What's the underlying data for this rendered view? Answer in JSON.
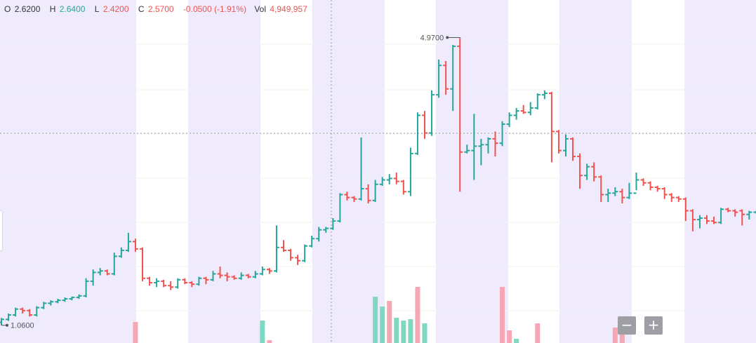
{
  "legend": {
    "o_label": "O",
    "o_value": "2.6200",
    "h_label": "H",
    "h_value": "2.6400",
    "l_label": "L",
    "l_value": "2.4200",
    "c_label": "C",
    "c_value": "2.5700",
    "change": "-0.0500 (-1.91%)",
    "vol_label": "Vol",
    "vol_value": "4,949,957"
  },
  "annotations": {
    "max_label": "4.9700",
    "min_label": "1.0600"
  },
  "zoom": {
    "minus_label": "−",
    "plus_label": "+"
  },
  "colors": {
    "up": "#26a69a",
    "down": "#ef5350",
    "band": "#efebfd",
    "crosshair": "#9598a1"
  },
  "chart_data": {
    "type": "ohlc",
    "ylim": [
      1.0,
      5.3
    ],
    "max_high": 4.97,
    "min_low": 1.06,
    "series": [
      {
        "o": 1.1,
        "h": 1.16,
        "l": 1.06,
        "c": 1.14
      },
      {
        "o": 1.14,
        "h": 1.22,
        "l": 1.12,
        "c": 1.2
      },
      {
        "o": 1.2,
        "h": 1.3,
        "l": 1.18,
        "c": 1.28
      },
      {
        "o": 1.28,
        "h": 1.3,
        "l": 1.22,
        "c": 1.26
      },
      {
        "o": 1.26,
        "h": 1.28,
        "l": 1.18,
        "c": 1.2
      },
      {
        "o": 1.2,
        "h": 1.32,
        "l": 1.18,
        "c": 1.3
      },
      {
        "o": 1.3,
        "h": 1.38,
        "l": 1.28,
        "c": 1.36
      },
      {
        "o": 1.36,
        "h": 1.4,
        "l": 1.33,
        "c": 1.38
      },
      {
        "o": 1.38,
        "h": 1.42,
        "l": 1.36,
        "c": 1.4
      },
      {
        "o": 1.4,
        "h": 1.44,
        "l": 1.38,
        "c": 1.42
      },
      {
        "o": 1.42,
        "h": 1.45,
        "l": 1.4,
        "c": 1.44
      },
      {
        "o": 1.44,
        "h": 1.48,
        "l": 1.42,
        "c": 1.46
      },
      {
        "o": 1.46,
        "h": 1.7,
        "l": 1.44,
        "c": 1.66
      },
      {
        "o": 1.66,
        "h": 1.82,
        "l": 1.6,
        "c": 1.78
      },
      {
        "o": 1.78,
        "h": 1.84,
        "l": 1.74,
        "c": 1.8
      },
      {
        "o": 1.8,
        "h": 1.82,
        "l": 1.74,
        "c": 1.76
      },
      {
        "o": 1.76,
        "h": 2.05,
        "l": 1.74,
        "c": 2.0
      },
      {
        "o": 2.0,
        "h": 2.12,
        "l": 1.98,
        "c": 2.08
      },
      {
        "o": 2.08,
        "h": 2.32,
        "l": 2.06,
        "c": 2.2
      },
      {
        "o": 2.2,
        "h": 2.24,
        "l": 2.06,
        "c": 2.1
      },
      {
        "o": 2.1,
        "h": 2.12,
        "l": 1.66,
        "c": 1.7
      },
      {
        "o": 1.7,
        "h": 1.72,
        "l": 1.6,
        "c": 1.64
      },
      {
        "o": 1.64,
        "h": 1.7,
        "l": 1.58,
        "c": 1.66
      },
      {
        "o": 1.66,
        "h": 1.68,
        "l": 1.58,
        "c": 1.6
      },
      {
        "o": 1.6,
        "h": 1.66,
        "l": 1.54,
        "c": 1.58
      },
      {
        "o": 1.58,
        "h": 1.7,
        "l": 1.56,
        "c": 1.68
      },
      {
        "o": 1.68,
        "h": 1.7,
        "l": 1.62,
        "c": 1.64
      },
      {
        "o": 1.64,
        "h": 1.66,
        "l": 1.58,
        "c": 1.62
      },
      {
        "o": 1.62,
        "h": 1.72,
        "l": 1.6,
        "c": 1.7
      },
      {
        "o": 1.7,
        "h": 1.72,
        "l": 1.62,
        "c": 1.68
      },
      {
        "o": 1.68,
        "h": 1.8,
        "l": 1.66,
        "c": 1.76
      },
      {
        "o": 1.76,
        "h": 1.86,
        "l": 1.7,
        "c": 1.74
      },
      {
        "o": 1.74,
        "h": 1.78,
        "l": 1.66,
        "c": 1.72
      },
      {
        "o": 1.72,
        "h": 1.74,
        "l": 1.68,
        "c": 1.7
      },
      {
        "o": 1.7,
        "h": 1.78,
        "l": 1.68,
        "c": 1.74
      },
      {
        "o": 1.74,
        "h": 1.76,
        "l": 1.7,
        "c": 1.72
      },
      {
        "o": 1.72,
        "h": 1.8,
        "l": 1.7,
        "c": 1.76
      },
      {
        "o": 1.76,
        "h": 1.86,
        "l": 1.74,
        "c": 1.82
      },
      {
        "o": 1.82,
        "h": 1.84,
        "l": 1.76,
        "c": 1.8
      },
      {
        "o": 1.8,
        "h": 2.42,
        "l": 1.78,
        "c": 2.12
      },
      {
        "o": 2.12,
        "h": 2.22,
        "l": 2.06,
        "c": 2.08
      },
      {
        "o": 2.08,
        "h": 2.1,
        "l": 1.94,
        "c": 1.98
      },
      {
        "o": 1.98,
        "h": 2.02,
        "l": 1.88,
        "c": 1.94
      },
      {
        "o": 1.94,
        "h": 2.16,
        "l": 1.92,
        "c": 2.14
      },
      {
        "o": 2.14,
        "h": 2.28,
        "l": 2.12,
        "c": 2.24
      },
      {
        "o": 2.24,
        "h": 2.4,
        "l": 2.2,
        "c": 2.36
      },
      {
        "o": 2.36,
        "h": 2.4,
        "l": 2.32,
        "c": 2.38
      },
      {
        "o": 2.38,
        "h": 2.52,
        "l": 2.36,
        "c": 2.48
      },
      {
        "o": 2.48,
        "h": 2.86,
        "l": 2.46,
        "c": 2.84
      },
      {
        "o": 2.84,
        "h": 2.88,
        "l": 2.76,
        "c": 2.8
      },
      {
        "o": 2.8,
        "h": 2.82,
        "l": 2.74,
        "c": 2.78
      },
      {
        "o": 2.78,
        "h": 3.62,
        "l": 2.76,
        "c": 2.92
      },
      {
        "o": 2.92,
        "h": 2.98,
        "l": 2.72,
        "c": 2.76
      },
      {
        "o": 2.76,
        "h": 3.04,
        "l": 2.74,
        "c": 2.98
      },
      {
        "o": 2.98,
        "h": 3.08,
        "l": 2.96,
        "c": 3.04
      },
      {
        "o": 3.04,
        "h": 3.12,
        "l": 2.98,
        "c": 3.06
      },
      {
        "o": 3.06,
        "h": 3.14,
        "l": 2.98,
        "c": 3.02
      },
      {
        "o": 3.02,
        "h": 3.04,
        "l": 2.84,
        "c": 2.88
      },
      {
        "o": 2.88,
        "h": 3.48,
        "l": 2.82,
        "c": 3.4
      },
      {
        "o": 3.4,
        "h": 3.96,
        "l": 3.38,
        "c": 3.92
      },
      {
        "o": 3.92,
        "h": 3.98,
        "l": 3.6,
        "c": 3.68
      },
      {
        "o": 3.68,
        "h": 4.26,
        "l": 3.64,
        "c": 4.2
      },
      {
        "o": 4.2,
        "h": 4.68,
        "l": 4.16,
        "c": 4.6
      },
      {
        "o": 4.6,
        "h": 4.66,
        "l": 4.2,
        "c": 4.28
      },
      {
        "o": 4.28,
        "h": 4.88,
        "l": 3.98,
        "c": 4.86
      },
      {
        "o": 4.86,
        "h": 4.97,
        "l": 2.88,
        "c": 3.42
      },
      {
        "o": 3.42,
        "h": 3.52,
        "l": 3.4,
        "c": 3.44
      },
      {
        "o": 3.44,
        "h": 3.94,
        "l": 3.04,
        "c": 3.5
      },
      {
        "o": 3.5,
        "h": 3.6,
        "l": 3.24,
        "c": 3.52
      },
      {
        "o": 3.52,
        "h": 3.62,
        "l": 3.4,
        "c": 3.6
      },
      {
        "o": 3.6,
        "h": 3.7,
        "l": 3.36,
        "c": 3.54
      },
      {
        "o": 3.54,
        "h": 3.84,
        "l": 3.5,
        "c": 3.8
      },
      {
        "o": 3.8,
        "h": 3.96,
        "l": 3.76,
        "c": 3.92
      },
      {
        "o": 3.92,
        "h": 4.02,
        "l": 3.86,
        "c": 3.98
      },
      {
        "o": 3.98,
        "h": 4.06,
        "l": 3.94,
        "c": 3.96
      },
      {
        "o": 3.96,
        "h": 4.1,
        "l": 3.92,
        "c": 4.02
      },
      {
        "o": 4.02,
        "h": 4.22,
        "l": 4.0,
        "c": 4.2
      },
      {
        "o": 4.2,
        "h": 4.26,
        "l": 4.14,
        "c": 4.22
      },
      {
        "o": 4.22,
        "h": 4.24,
        "l": 3.28,
        "c": 3.7
      },
      {
        "o": 3.7,
        "h": 3.72,
        "l": 3.4,
        "c": 3.44
      },
      {
        "o": 3.44,
        "h": 3.66,
        "l": 3.36,
        "c": 3.6
      },
      {
        "o": 3.6,
        "h": 3.62,
        "l": 3.3,
        "c": 3.36
      },
      {
        "o": 3.36,
        "h": 3.4,
        "l": 2.92,
        "c": 3.1
      },
      {
        "o": 3.1,
        "h": 3.26,
        "l": 3.04,
        "c": 3.22
      },
      {
        "o": 3.22,
        "h": 3.28,
        "l": 3.02,
        "c": 3.08
      },
      {
        "o": 3.08,
        "h": 3.1,
        "l": 2.74,
        "c": 2.84
      },
      {
        "o": 2.84,
        "h": 2.92,
        "l": 2.74,
        "c": 2.86
      },
      {
        "o": 2.86,
        "h": 2.94,
        "l": 2.82,
        "c": 2.88
      },
      {
        "o": 2.88,
        "h": 2.92,
        "l": 2.72,
        "c": 2.8
      },
      {
        "o": 2.8,
        "h": 3.0,
        "l": 2.78,
        "c": 2.86
      },
      {
        "o": 2.86,
        "h": 3.14,
        "l": 2.9,
        "c": 3.04
      },
      {
        "o": 3.04,
        "h": 3.06,
        "l": 2.96,
        "c": 3.0
      },
      {
        "o": 3.0,
        "h": 3.02,
        "l": 2.9,
        "c": 2.94
      },
      {
        "o": 2.94,
        "h": 2.96,
        "l": 2.88,
        "c": 2.92
      },
      {
        "o": 2.92,
        "h": 2.94,
        "l": 2.78,
        "c": 2.84
      },
      {
        "o": 2.84,
        "h": 2.86,
        "l": 2.74,
        "c": 2.8
      },
      {
        "o": 2.8,
        "h": 2.82,
        "l": 2.74,
        "c": 2.78
      },
      {
        "o": 2.78,
        "h": 2.8,
        "l": 2.48,
        "c": 2.62
      },
      {
        "o": 2.62,
        "h": 2.64,
        "l": 2.34,
        "c": 2.5
      },
      {
        "o": 2.5,
        "h": 2.56,
        "l": 2.38,
        "c": 2.52
      },
      {
        "o": 2.52,
        "h": 2.56,
        "l": 2.44,
        "c": 2.48
      },
      {
        "o": 2.48,
        "h": 2.54,
        "l": 2.44,
        "c": 2.46
      },
      {
        "o": 2.46,
        "h": 2.66,
        "l": 2.44,
        "c": 2.64
      },
      {
        "o": 2.64,
        "h": 2.66,
        "l": 2.6,
        "c": 2.62
      },
      {
        "o": 2.62,
        "h": 2.64,
        "l": 2.54,
        "c": 2.6
      },
      {
        "o": 2.62,
        "h": 2.64,
        "l": 2.42,
        "c": 2.57
      },
      {
        "o": 2.57,
        "h": 2.62,
        "l": 2.5,
        "c": 2.6
      },
      {
        "o": 2.6,
        "h": 2.62,
        "l": 2.58,
        "c": 2.62
      }
    ],
    "volume": [
      {
        "i": 19,
        "v": 0.3,
        "dir": "down"
      },
      {
        "i": 37,
        "v": 0.32,
        "dir": "up"
      },
      {
        "i": 38,
        "v": 0.04,
        "dir": "down"
      },
      {
        "i": 53,
        "v": 0.66,
        "dir": "up"
      },
      {
        "i": 54,
        "v": 0.52,
        "dir": "up"
      },
      {
        "i": 55,
        "v": 0.6,
        "dir": "down"
      },
      {
        "i": 56,
        "v": 0.36,
        "dir": "up"
      },
      {
        "i": 57,
        "v": 0.32,
        "dir": "up"
      },
      {
        "i": 58,
        "v": 0.34,
        "dir": "up"
      },
      {
        "i": 59,
        "v": 0.8,
        "dir": "down"
      },
      {
        "i": 60,
        "v": 0.28,
        "dir": "up"
      },
      {
        "i": 71,
        "v": 0.8,
        "dir": "down"
      },
      {
        "i": 72,
        "v": 0.18,
        "dir": "down"
      },
      {
        "i": 73,
        "v": 0.06,
        "dir": "up"
      },
      {
        "i": 76,
        "v": 0.28,
        "dir": "down"
      },
      {
        "i": 87,
        "v": 0.22,
        "dir": "down"
      },
      {
        "i": 88,
        "v": 0.16,
        "dir": "down"
      }
    ]
  }
}
